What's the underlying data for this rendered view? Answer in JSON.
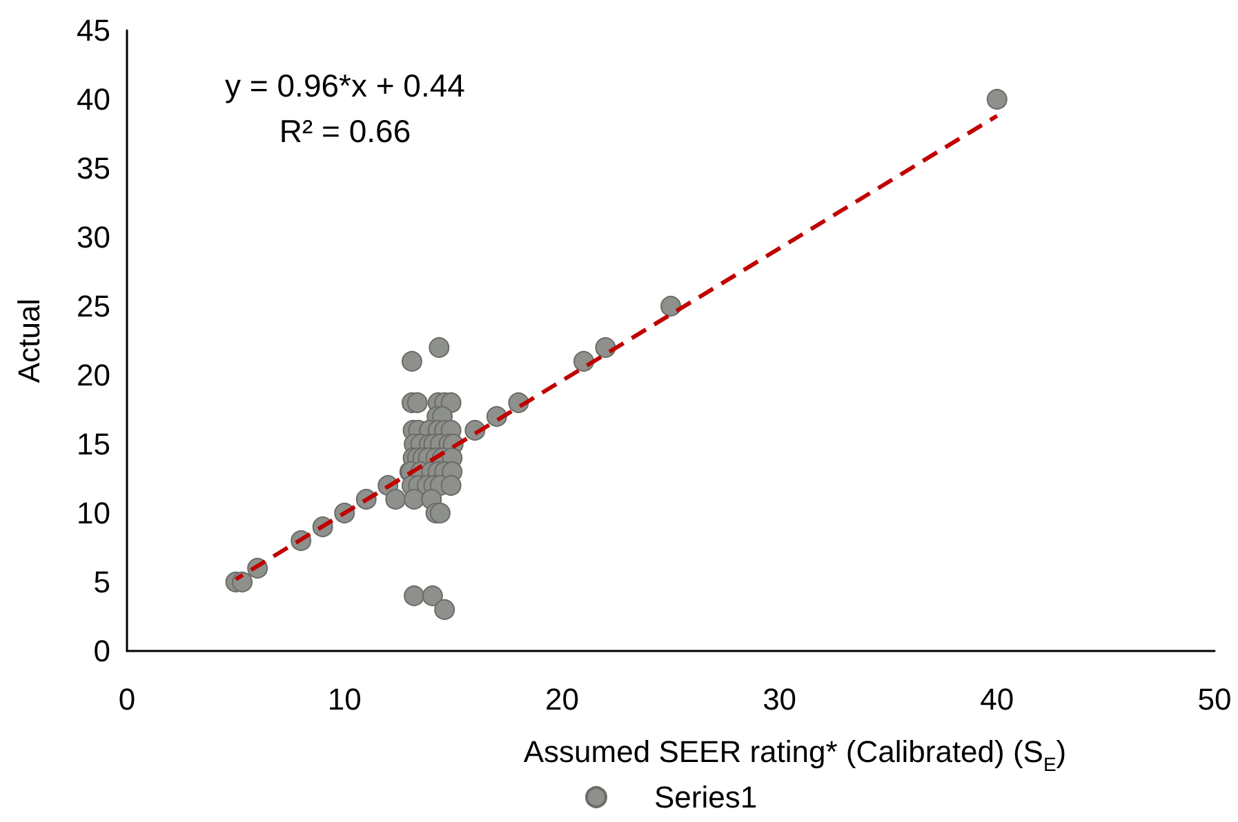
{
  "chart_data": {
    "type": "scatter",
    "xlabel": "Assumed SEER rating* (Calibrated) (S$_{E}$)",
    "ylabel": "Actual",
    "annotations": [
      "y = 0.96*x + 0.44",
      "R² = 0.66"
    ],
    "xlim": [
      0,
      50
    ],
    "xticks": [
      0,
      10,
      20,
      30,
      40,
      50
    ],
    "ylim": [
      0,
      45
    ],
    "yticks": [
      0,
      5,
      10,
      15,
      20,
      25,
      30,
      35,
      40,
      45
    ],
    "legend": "bottom",
    "series": [
      {
        "name": "Series1",
        "color": "#8e908c",
        "marker": "circle",
        "x": [
          5,
          5.3,
          6,
          8,
          9,
          10,
          11,
          12,
          12.35,
          13,
          16,
          17,
          18,
          21,
          22,
          25,
          40,
          13.1,
          14.35,
          13.2,
          14.05,
          14.6,
          13.1,
          13.35,
          14.3,
          14.6,
          14.9,
          14.25,
          14.5,
          13.15,
          13.4,
          13.9,
          14.3,
          14.6,
          14.9,
          13.2,
          13.5,
          13.9,
          14.1,
          14.4,
          14.8,
          15,
          13.15,
          13.35,
          13.6,
          13.85,
          14.2,
          14.5,
          14.95,
          13.05,
          13.5,
          14,
          14.3,
          14.6,
          14.95,
          13.1,
          13.4,
          13.8,
          14.1,
          14.4,
          14.9,
          13.2,
          14,
          14.2,
          14.4
        ],
        "values": [
          5,
          5,
          6,
          8,
          9,
          10,
          11,
          12,
          11,
          13,
          16,
          17,
          18,
          21,
          22,
          25,
          40,
          21,
          22,
          4,
          4,
          3,
          18,
          18,
          18,
          18,
          18,
          17,
          17,
          16,
          16,
          16,
          16,
          16,
          16,
          15,
          15,
          15,
          15,
          15,
          15,
          15,
          14,
          14,
          14,
          14,
          14,
          14,
          14,
          13,
          13,
          13,
          13,
          13,
          13,
          12,
          12,
          12,
          12,
          12,
          12,
          11,
          11,
          10,
          10
        ]
      },
      {
        "type": "line",
        "color": "#c00000",
        "marker": "none",
        "line_style": "dashed",
        "x": [
          5,
          40
        ],
        "values": [
          5.2,
          38.8
        ]
      }
    ]
  }
}
